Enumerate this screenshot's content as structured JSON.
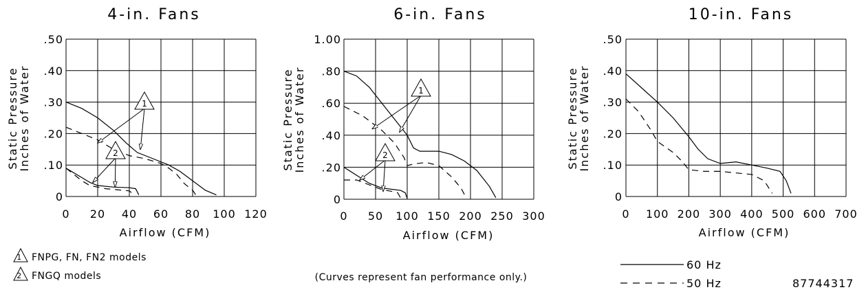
{
  "chart_data": [
    {
      "type": "line",
      "title": "4-in. Fans",
      "xlabel": "Airflow (CFM)",
      "ylabel": [
        "Static Pressure",
        "Inches of Water"
      ],
      "xlim": [
        0,
        120
      ],
      "ylim": [
        0,
        0.5
      ],
      "x_ticks": [
        "0",
        "20",
        "40",
        "60",
        "80",
        "100",
        "120"
      ],
      "y_ticks": [
        "0",
        ".10",
        ".20",
        ".30",
        ".40",
        ".50"
      ],
      "grid": true,
      "series": [
        {
          "model_group": "1",
          "frequency": "60 Hz",
          "style": "solid",
          "points": [
            [
              0,
              0.3
            ],
            [
              10,
              0.28
            ],
            [
              20,
              0.25
            ],
            [
              30,
              0.21
            ],
            [
              38,
              0.17
            ],
            [
              45,
              0.14
            ],
            [
              55,
              0.12
            ],
            [
              65,
              0.1
            ],
            [
              72,
              0.08
            ],
            [
              80,
              0.05
            ],
            [
              88,
              0.02
            ],
            [
              95,
              0.005
            ]
          ]
        },
        {
          "model_group": "1",
          "frequency": "50 Hz",
          "style": "dashed",
          "points": [
            [
              0,
              0.22
            ],
            [
              10,
              0.2
            ],
            [
              20,
              0.18
            ],
            [
              30,
              0.15
            ],
            [
              40,
              0.13
            ],
            [
              50,
              0.12
            ],
            [
              60,
              0.105
            ],
            [
              65,
              0.09
            ],
            [
              70,
              0.07
            ],
            [
              75,
              0.04
            ],
            [
              80,
              0.02
            ],
            [
              82,
              0.005
            ]
          ]
        },
        {
          "model_group": "2",
          "frequency": "60 Hz",
          "style": "solid",
          "points": [
            [
              0,
              0.09
            ],
            [
              10,
              0.06
            ],
            [
              15,
              0.045
            ],
            [
              20,
              0.035
            ],
            [
              30,
              0.03
            ],
            [
              40,
              0.028
            ],
            [
              44,
              0.025
            ],
            [
              46,
              0.005
            ]
          ]
        },
        {
          "model_group": "2",
          "frequency": "50 Hz",
          "style": "dashed",
          "points": [
            [
              0,
              0.09
            ],
            [
              10,
              0.05
            ],
            [
              15,
              0.035
            ],
            [
              25,
              0.025
            ],
            [
              35,
              0.02
            ],
            [
              40,
              0.018
            ],
            [
              43,
              0.005
            ]
          ]
        }
      ],
      "annotations": [
        {
          "label": "1",
          "target_points": [
            [
              20,
              0.17
            ],
            [
              47,
              0.15
            ]
          ]
        },
        {
          "label": "2",
          "target_points": [
            [
              17,
              0.045
            ],
            [
              31,
              0.03
            ]
          ]
        }
      ]
    },
    {
      "type": "line",
      "title": "6-in. Fans",
      "xlabel": "Airflow (CFM)",
      "ylabel": [
        "Static Pressure",
        "Inches of Water"
      ],
      "xlim": [
        0,
        300
      ],
      "ylim": [
        0,
        1.0
      ],
      "x_ticks": [
        "0",
        "50",
        "100",
        "150",
        "200",
        "250",
        "300"
      ],
      "y_ticks": [
        "0",
        ".20",
        ".40",
        ".60",
        ".80",
        "1.00"
      ],
      "grid": true,
      "series": [
        {
          "model_group": "1",
          "frequency": "60 Hz",
          "style": "solid",
          "points": [
            [
              0,
              0.8
            ],
            [
              20,
              0.77
            ],
            [
              40,
              0.7
            ],
            [
              60,
              0.6
            ],
            [
              80,
              0.5
            ],
            [
              100,
              0.4
            ],
            [
              110,
              0.32
            ],
            [
              120,
              0.3
            ],
            [
              150,
              0.3
            ],
            [
              170,
              0.28
            ],
            [
              190,
              0.24
            ],
            [
              210,
              0.18
            ],
            [
              230,
              0.08
            ],
            [
              240,
              0.01
            ]
          ]
        },
        {
          "model_group": "1",
          "frequency": "50 Hz",
          "style": "dashed",
          "points": [
            [
              0,
              0.58
            ],
            [
              30,
              0.52
            ],
            [
              60,
              0.43
            ],
            [
              80,
              0.35
            ],
            [
              95,
              0.26
            ],
            [
              100,
              0.21
            ],
            [
              110,
              0.22
            ],
            [
              130,
              0.23
            ],
            [
              150,
              0.21
            ],
            [
              170,
              0.14
            ],
            [
              185,
              0.07
            ],
            [
              193,
              0.01
            ]
          ]
        },
        {
          "model_group": "2",
          "frequency": "60 Hz",
          "style": "solid",
          "points": [
            [
              0,
              0.2
            ],
            [
              20,
              0.15
            ],
            [
              40,
              0.1
            ],
            [
              60,
              0.07
            ],
            [
              80,
              0.06
            ],
            [
              90,
              0.055
            ],
            [
              97,
              0.04
            ],
            [
              100,
              0.005
            ]
          ]
        },
        {
          "model_group": "2",
          "frequency": "50 Hz",
          "style": "dashed",
          "points": [
            [
              0,
              0.12
            ],
            [
              20,
              0.12
            ],
            [
              40,
              0.09
            ],
            [
              60,
              0.06
            ],
            [
              75,
              0.05
            ],
            [
              85,
              0.04
            ],
            [
              90,
              0.005
            ]
          ]
        }
      ],
      "annotations": [
        {
          "label": "1",
          "target_points": [
            [
              45,
              0.44
            ],
            [
              88,
              0.42
            ]
          ]
        },
        {
          "label": "2",
          "target_points": [
            [
              25,
              0.12
            ],
            [
              62,
              0.05
            ]
          ]
        }
      ]
    },
    {
      "type": "line",
      "title": "10-in. Fans",
      "xlabel": "Airflow (CFM)",
      "ylabel": [
        "Static Pressure",
        "Inches of Water"
      ],
      "xlim": [
        0,
        700
      ],
      "ylim": [
        0,
        0.5
      ],
      "x_ticks": [
        "0",
        "100",
        "200",
        "300",
        "400",
        "500",
        "600",
        "700"
      ],
      "y_ticks": [
        "0",
        ".10",
        ".20",
        ".30",
        ".40",
        ".50"
      ],
      "grid": true,
      "series": [
        {
          "frequency": "60 Hz",
          "style": "solid",
          "points": [
            [
              0,
              0.39
            ],
            [
              50,
              0.345
            ],
            [
              100,
              0.3
            ],
            [
              150,
              0.25
            ],
            [
              200,
              0.19
            ],
            [
              230,
              0.15
            ],
            [
              260,
              0.12
            ],
            [
              300,
              0.105
            ],
            [
              350,
              0.11
            ],
            [
              400,
              0.1
            ],
            [
              450,
              0.09
            ],
            [
              490,
              0.08
            ],
            [
              510,
              0.05
            ],
            [
              525,
              0.01
            ]
          ]
        },
        {
          "frequency": "50 Hz",
          "style": "dashed",
          "points": [
            [
              0,
              0.31
            ],
            [
              40,
              0.27
            ],
            [
              80,
              0.21
            ],
            [
              100,
              0.175
            ],
            [
              150,
              0.14
            ],
            [
              180,
              0.11
            ],
            [
              200,
              0.085
            ],
            [
              250,
              0.08
            ],
            [
              300,
              0.08
            ],
            [
              350,
              0.075
            ],
            [
              400,
              0.07
            ],
            [
              440,
              0.05
            ],
            [
              465,
              0.01
            ]
          ]
        }
      ]
    }
  ],
  "legend": {
    "models": [
      {
        "marker": "1",
        "text": "FNPG, FN, FN2 models"
      },
      {
        "marker": "2",
        "text": "FNGQ models"
      }
    ],
    "lines": [
      {
        "style": "solid",
        "text": "60 Hz"
      },
      {
        "style": "dashed",
        "text": "50 Hz"
      }
    ]
  },
  "footnote": "(Curves represent fan performance only.)",
  "doc_number": "87744317"
}
